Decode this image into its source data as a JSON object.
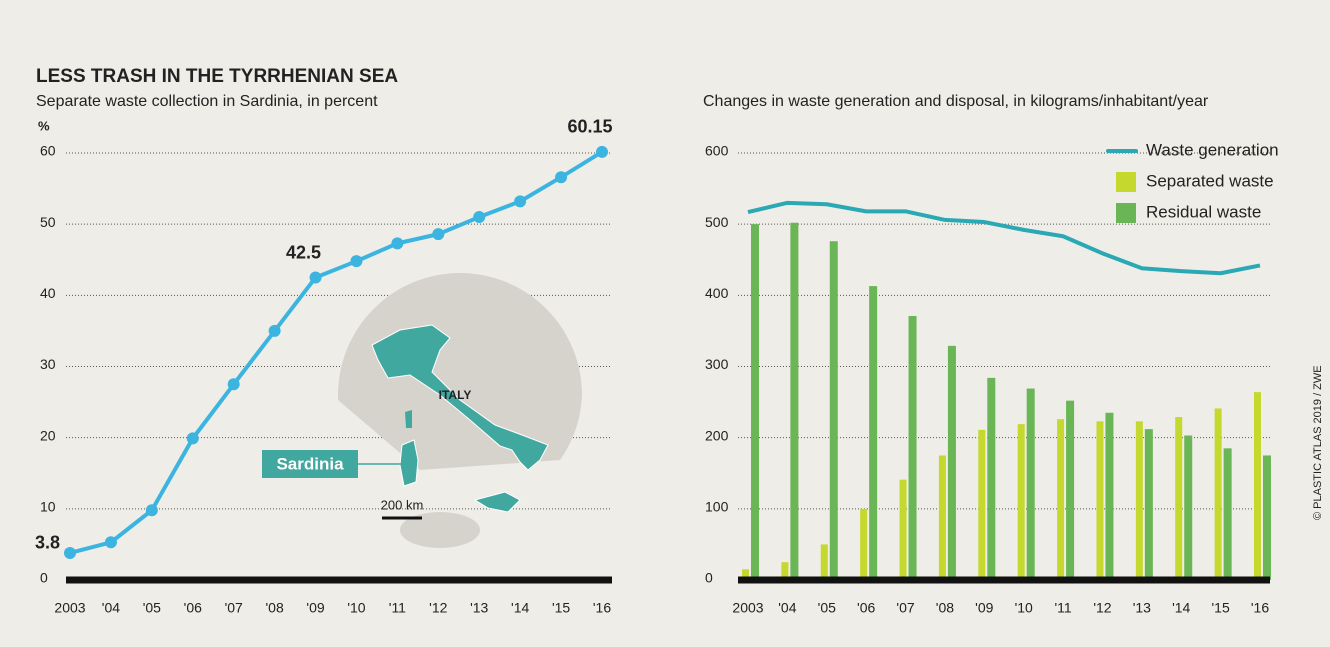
{
  "title": "LESS TRASH IN THE TYRRHENIAN SEA",
  "credit": "© PLASTIC ATLAS 2019 / ZWE",
  "chart_data": [
    {
      "type": "line",
      "subtitle": "Separate waste collection in Sardinia, in percent",
      "y_label": "%",
      "categories": [
        "2003",
        "'04",
        "'05",
        "'06",
        "'07",
        "'08",
        "'09",
        "'10",
        "'11",
        "'12",
        "'13",
        "'14",
        "'15",
        "'16"
      ],
      "series": [
        {
          "name": null,
          "color": "#3bb4e0",
          "values": [
            3.8,
            5.3,
            9.8,
            19.9,
            27.5,
            35.0,
            42.5,
            44.8,
            47.3,
            48.6,
            51.0,
            53.2,
            56.6,
            60.15
          ],
          "value_labels": [
            "3.8",
            null,
            null,
            null,
            null,
            null,
            "42.5",
            null,
            null,
            null,
            null,
            null,
            null,
            "60.15"
          ]
        }
      ],
      "ylim": [
        0,
        60
      ],
      "yticks": [
        0,
        10,
        20,
        30,
        40,
        50,
        60
      ],
      "grid": true,
      "annotations": [
        "ITALY",
        "Sardinia",
        "200 km"
      ]
    },
    {
      "type": "bar",
      "subtitle": "Changes in waste generation and disposal, in kilograms/inhabitant/year",
      "categories": [
        "2003",
        "'04",
        "'05",
        "'06",
        "'07",
        "'08",
        "'09",
        "'10",
        "'11",
        "'12",
        "'13",
        "'14",
        "'15",
        "'16"
      ],
      "series": [
        {
          "name": "Waste generation",
          "type": "line",
          "color": "#2aa9b5",
          "values": [
            517,
            530,
            528,
            518,
            518,
            506,
            503,
            492,
            483,
            459,
            438,
            434,
            431,
            442
          ]
        },
        {
          "name": "Separated waste",
          "type": "bar",
          "color": "#c5d82e",
          "values": [
            15,
            25,
            50,
            100,
            141,
            175,
            211,
            219,
            226,
            223,
            223,
            229,
            241,
            264
          ]
        },
        {
          "name": "Residual waste",
          "type": "bar",
          "color": "#6ab556",
          "values": [
            500,
            502,
            476,
            413,
            371,
            329,
            284,
            269,
            252,
            235,
            212,
            203,
            185,
            175
          ]
        }
      ],
      "ylim": [
        0,
        600
      ],
      "yticks": [
        0,
        100,
        200,
        300,
        400,
        500,
        600
      ],
      "grid": true,
      "legend": "top-right"
    }
  ]
}
